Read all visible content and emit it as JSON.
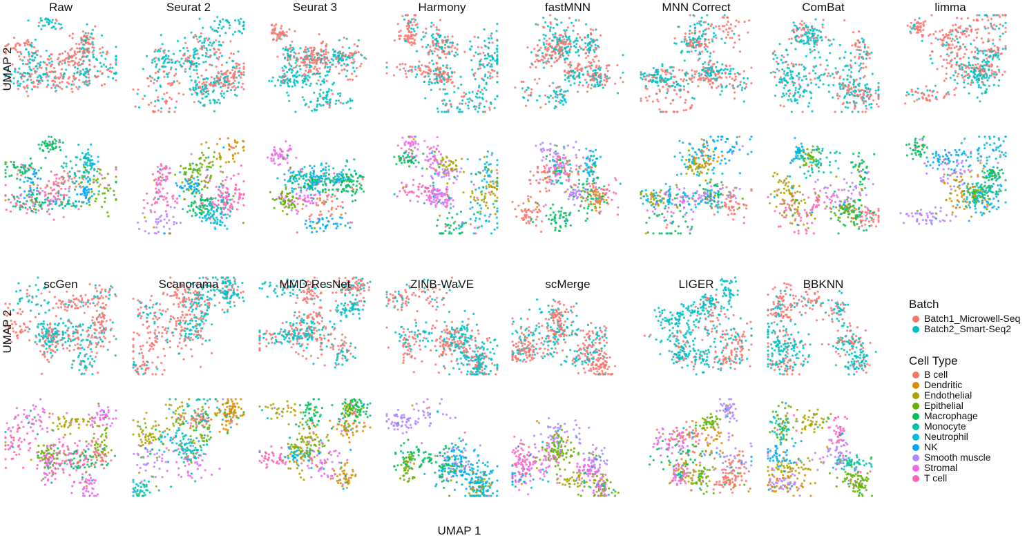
{
  "chart_data": {
    "type": "scatter",
    "kind": "UMAP embedding grid (2 blocks x 2 rows: colored by Batch, then by Cell Type)",
    "xlabel": "UMAP 1",
    "ylabel": "UMAP 2",
    "grid": false,
    "panel_titles_block1": [
      "Raw",
      "Seurat 2",
      "Seurat 3",
      "Harmony",
      "fastMNN",
      "MNN Correct",
      "ComBat",
      "limma"
    ],
    "panel_titles_block2": [
      "scGen",
      "Scanorama",
      "MMD-ResNet",
      "ZINB-WaVE",
      "scMerge",
      "LIGER",
      "BBKNN"
    ],
    "legend_placement": "right",
    "legends": [
      {
        "title": "Batch",
        "entries": [
          {
            "label": "Batch1_Microwell-Seq",
            "color": "#F8766D"
          },
          {
            "label": "Batch2_Smart-Seq2",
            "color": "#00BFC4"
          }
        ]
      },
      {
        "title": "Cell Type",
        "entries": [
          {
            "label": "B cell",
            "color": "#F8766D"
          },
          {
            "label": "Dendritic",
            "color": "#DB8E00"
          },
          {
            "label": "Endothelial",
            "color": "#AEA200"
          },
          {
            "label": "Epithelial",
            "color": "#64B200"
          },
          {
            "label": "Macrophage",
            "color": "#00BD5C"
          },
          {
            "label": "Monocyte",
            "color": "#00C1A7"
          },
          {
            "label": "Neutrophil",
            "color": "#00BADE"
          },
          {
            "label": "NK",
            "color": "#00A6FF"
          },
          {
            "label": "Smooth muscle",
            "color": "#B385FF"
          },
          {
            "label": "Stromal",
            "color": "#EF67EB"
          },
          {
            "label": "T cell",
            "color": "#FF63B6"
          }
        ]
      }
    ]
  }
}
